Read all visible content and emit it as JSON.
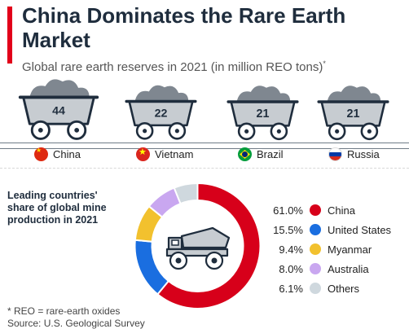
{
  "header": {
    "title": "China Dominates the Rare Earth Market",
    "subtitle": "Global rare earth reserves in 2021 (in million REO tons)",
    "subtitle_mark": "*"
  },
  "colors": {
    "accent": "#e2001a",
    "cart_body": "#c7ccd1",
    "cart_outline": "#1f2d3d",
    "ore": "#7f8790"
  },
  "chart_data": [
    {
      "type": "bar",
      "title": "Global rare earth reserves in 2021 (in million REO tons)",
      "categories": [
        "China",
        "Vietnam",
        "Brazil",
        "Russia"
      ],
      "values": [
        44,
        22,
        21,
        21
      ],
      "labels": [
        "44",
        "22",
        "21",
        "21"
      ],
      "flags": [
        "china-flag-icon",
        "vietnam-flag-icon",
        "brazil-flag-icon",
        "russia-flag-icon"
      ]
    },
    {
      "type": "pie",
      "donut": true,
      "title": "Leading countries' share of global mine production in 2021",
      "slices": [
        {
          "name": "China",
          "value": 61.0,
          "label": "61.0%",
          "color": "#d7001a"
        },
        {
          "name": "United States",
          "value": 15.5,
          "label": "15.5%",
          "color": "#1a6ee0"
        },
        {
          "name": "Myanmar",
          "value": 9.4,
          "label": "9.4%",
          "color": "#f2c12e"
        },
        {
          "name": "Australia",
          "value": 8.0,
          "label": "8.0%",
          "color": "#c9a7f0"
        },
        {
          "name": "Others",
          "value": 6.1,
          "label": "6.1%",
          "color": "#cfd8de"
        }
      ],
      "center_icon": "mining-truck-icon"
    }
  ],
  "footer": {
    "footnote": "* REO = rare-earth oxides",
    "source": "Source: U.S. Geological Survey"
  }
}
